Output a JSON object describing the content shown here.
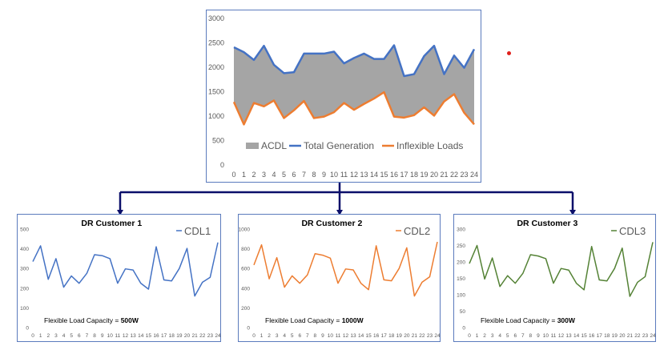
{
  "chart_data": [
    {
      "type": "area",
      "title": "",
      "x": [
        0,
        1,
        2,
        3,
        4,
        5,
        6,
        7,
        8,
        9,
        10,
        11,
        12,
        13,
        14,
        15,
        16,
        17,
        18,
        19,
        20,
        21,
        22,
        23,
        24
      ],
      "ylim": [
        0,
        3000
      ],
      "yticks": [
        0,
        500,
        1000,
        1500,
        2000,
        2500,
        3000
      ],
      "series": [
        {
          "name": "ACDL",
          "kind": "band",
          "color": "#a5a5a5"
        },
        {
          "name": "Total Generation",
          "kind": "line",
          "color": "#4472c4",
          "values": [
            2410,
            2310,
            2150,
            2440,
            2050,
            1880,
            1900,
            2280,
            2280,
            2280,
            2320,
            2080,
            2190,
            2280,
            2170,
            2170,
            2450,
            1820,
            1860,
            2230,
            2440,
            1860,
            2240,
            1990,
            2370
          ]
        },
        {
          "name": "Inflexible Loads",
          "kind": "line",
          "color": "#ed7d31",
          "values": [
            1290,
            830,
            1270,
            1200,
            1320,
            960,
            1120,
            1310,
            960,
            990,
            1080,
            1270,
            1130,
            1250,
            1360,
            1490,
            990,
            970,
            1020,
            1180,
            1010,
            1300,
            1450,
            1070,
            830
          ]
        }
      ],
      "legend_position": "bottom"
    },
    {
      "type": "line",
      "title": "DR Customer 1",
      "x": [
        0,
        1,
        2,
        3,
        4,
        5,
        6,
        7,
        8,
        9,
        10,
        11,
        12,
        13,
        14,
        15,
        16,
        17,
        18,
        19,
        20,
        21,
        22,
        23,
        24
      ],
      "ylim": [
        0,
        500
      ],
      "yticks": [
        0,
        100,
        200,
        300,
        400,
        500
      ],
      "series": [
        {
          "name": "CDL1",
          "color": "#4472c4",
          "values": [
            335,
            415,
            245,
            350,
            205,
            262,
            225,
            275,
            370,
            365,
            350,
            225,
            298,
            292,
            225,
            195,
            410,
            242,
            237,
            300,
            402,
            160,
            230,
            255,
            432
          ]
        }
      ],
      "note_prefix": "Flexible Load Capacity = ",
      "note_value": "500W"
    },
    {
      "type": "line",
      "title": "DR Customer 2",
      "x": [
        0,
        1,
        2,
        3,
        4,
        5,
        6,
        7,
        8,
        9,
        10,
        11,
        12,
        13,
        14,
        15,
        16,
        17,
        18,
        19,
        20,
        21,
        22,
        23,
        24
      ],
      "ylim": [
        0,
        1000
      ],
      "yticks": [
        0,
        200,
        400,
        600,
        800,
        1000
      ],
      "series": [
        {
          "name": "CDL2",
          "color": "#ed7d31",
          "values": [
            635,
            840,
            495,
            710,
            410,
            525,
            450,
            535,
            750,
            735,
            705,
            450,
            595,
            585,
            450,
            385,
            830,
            485,
            475,
            600,
            810,
            320,
            460,
            515,
            870
          ]
        }
      ],
      "note_prefix": "Flexible Load Capacity = ",
      "note_value": "1000W"
    },
    {
      "type": "line",
      "title": "DR Customer 3",
      "x": [
        0,
        1,
        2,
        3,
        4,
        5,
        6,
        7,
        8,
        9,
        10,
        11,
        12,
        13,
        14,
        15,
        16,
        17,
        18,
        19,
        20,
        21,
        22,
        23,
        24
      ],
      "ylim": [
        0,
        300
      ],
      "yticks": [
        0,
        50,
        100,
        150,
        200,
        250,
        300
      ],
      "series": [
        {
          "name": "CDL3",
          "color": "#548235",
          "values": [
            195,
            250,
            148,
            212,
            125,
            158,
            135,
            165,
            222,
            218,
            210,
            135,
            180,
            175,
            135,
            115,
            247,
            145,
            142,
            180,
            242,
            95,
            138,
            155,
            260
          ]
        }
      ],
      "note_prefix": "Flexible Load Capacity = ",
      "note_value": "300W"
    }
  ],
  "colors": {
    "connector": "#0b0f6a",
    "panel_border": "#5b7bbd",
    "marker_dot": "#e0201b"
  }
}
